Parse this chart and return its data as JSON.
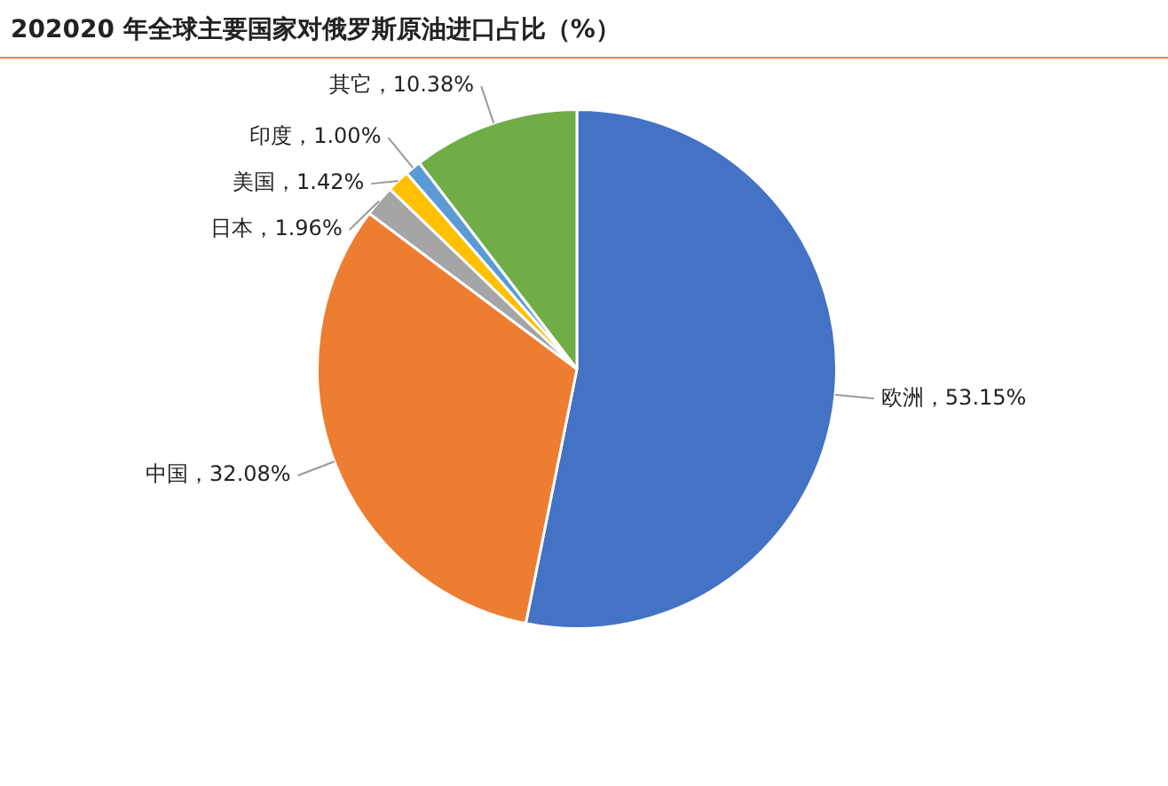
{
  "chart_data": {
    "type": "pie",
    "title": "202020 年全球主要国家对俄罗斯原油进口占比（%）",
    "categories": [
      "欧洲",
      "中国",
      "日本",
      "美国",
      "印度",
      "其它"
    ],
    "values": [
      53.15,
      32.08,
      1.96,
      1.42,
      1.0,
      10.38
    ],
    "colors": [
      "#4472c4",
      "#ed7d31",
      "#a5a5a5",
      "#ffc000",
      "#5b9bd5",
      "#70ad47"
    ],
    "value_labels": [
      "，53.15%",
      "，32.08%",
      "，1.96%",
      "，1.42%",
      "，1.00%",
      "，10.38%"
    ],
    "legend": false
  }
}
